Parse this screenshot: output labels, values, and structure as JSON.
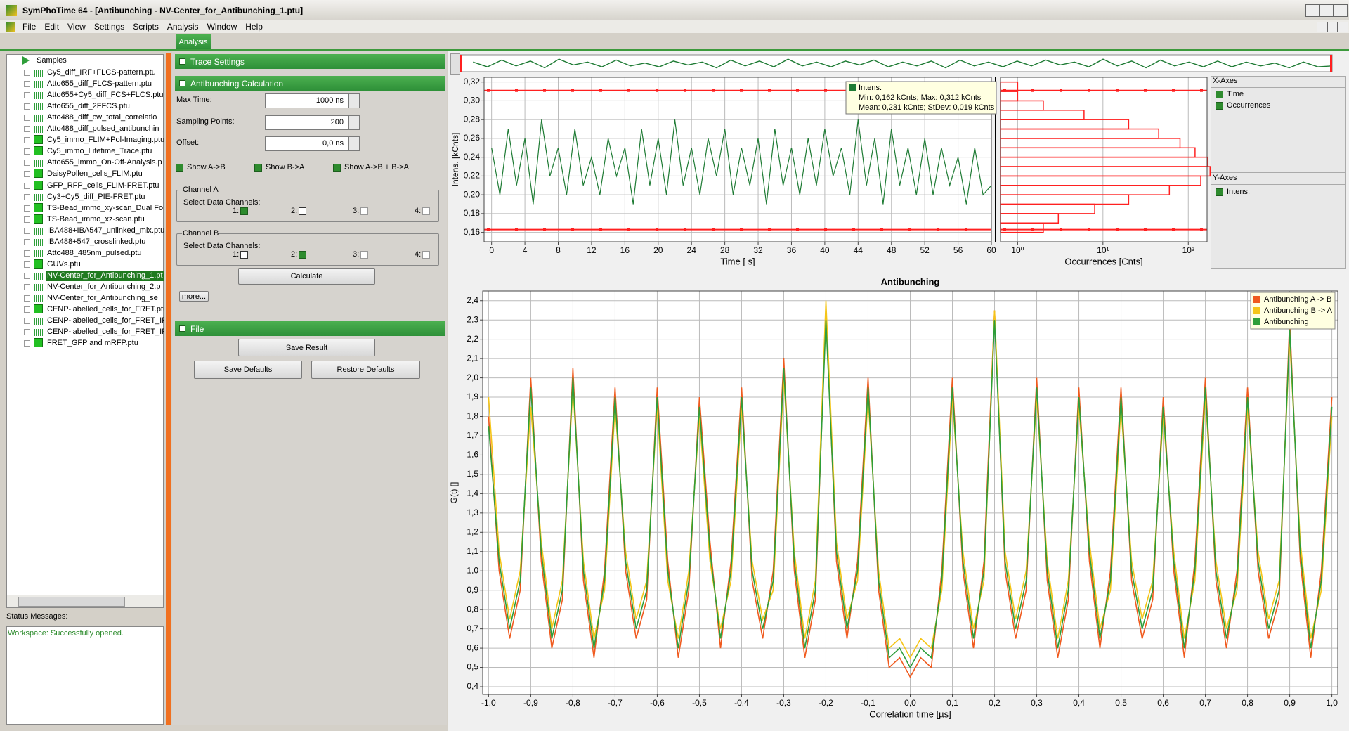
{
  "window": {
    "title": "SymPhoTime 64 - [Antibunching - NV-Center_for_Antibunching_1.ptu]"
  },
  "menu": [
    "File",
    "Edit",
    "View",
    "Settings",
    "Scripts",
    "Analysis",
    "Window",
    "Help"
  ],
  "tabs": [
    "Analysis"
  ],
  "tree": {
    "root": "Samples",
    "selected": 18,
    "items": [
      "Cy5_diff_IRF+FLCS-pattern.ptu",
      "Atto655_diff_FLCS-pattern.ptu",
      "Atto655+Cy5_diff_FCS+FLCS.ptu",
      "Atto655_diff_2FFCS.ptu",
      "Atto488_diff_cw_total_correlatio",
      "Atto488_diff_pulsed_antibunchin",
      "Cy5_immo_FLIM+Pol-Imaging.ptu",
      "Cy5_immo_Lifetime_Trace.ptu",
      "Atto655_immo_On-Off-Analysis.p",
      "DaisyPollen_cells_FLIM.ptu",
      "GFP_RFP_cells_FLIM-FRET.ptu",
      "Cy3+Cy5_diff_PIE-FRET.ptu",
      "TS-Bead_immo_xy-scan_Dual Fo",
      "TS-Bead_immo_xz-scan.ptu",
      "IBA488+IBA547_unlinked_mix.ptu",
      "IBA488+547_crosslinked.ptu",
      "Atto488_485nm_pulsed.ptu",
      "GUVs.ptu",
      "NV-Center_for_Antibunching_1.pt",
      "NV-Center_for_Antibunching_2.p",
      "NV-Center_for_Antibunching_se",
      "CENP-labelled_cells_for_FRET.ptu",
      "CENP-labelled_cells_for_FRET_IR",
      "CENP-labelled_cells_for_FRET_IR",
      "FRET_GFP and mRFP.ptu"
    ]
  },
  "status": {
    "label": "Status Messages:",
    "message": "Workspace: Successfully opened."
  },
  "panel": {
    "trace_settings": "Trace Settings",
    "antibunching_calculation": "Antibunching Calculation",
    "fields": [
      {
        "label": "Max Time:",
        "value": "1000 ns"
      },
      {
        "label": "Sampling Points:",
        "value": "200"
      },
      {
        "label": "Offset:",
        "value": "0,0 ns"
      }
    ],
    "checks": [
      "Show A->B",
      "Show B->A",
      "Show A->B + B->A"
    ],
    "channel_a": {
      "title": "Channel A",
      "label": "Select Data Channels:",
      "channels": [
        "1:",
        "2:",
        "3:",
        "4:"
      ],
      "checked": [
        true,
        false,
        false,
        false
      ]
    },
    "channel_b": {
      "title": "Channel B",
      "label": "Select Data Channels:",
      "channels": [
        "1:",
        "2:",
        "3:",
        "4:"
      ],
      "checked": [
        false,
        true,
        false,
        false
      ]
    },
    "calculate": "Calculate",
    "more": "more...",
    "file": "File",
    "save_result": "Save Result",
    "save_defaults": "Save Defaults",
    "restore_defaults": "Restore Defaults"
  },
  "axes_panel": {
    "x_title": "X-Axes",
    "x_items": [
      "Time",
      "Occurrences"
    ],
    "y_title": "Y-Axes",
    "y_items": [
      "Intens."
    ]
  },
  "tooltip": {
    "title": "Intens.",
    "lines": [
      "Min: 0,162 kCnts; Max: 0,312 kCnts",
      "Mean: 0,231 kCnts; StDev: 0,019 kCnts"
    ]
  },
  "chart_data": [
    {
      "type": "line",
      "xlabel": "Time [ s]",
      "ylabel": "Intens. [kCnts]",
      "x": [
        0,
        1,
        2,
        3,
        4,
        5,
        6,
        7,
        8,
        9,
        10,
        11,
        12,
        13,
        14,
        15,
        16,
        17,
        18,
        19,
        20,
        21,
        22,
        23,
        24,
        25,
        26,
        27,
        28,
        29,
        30,
        31,
        32,
        33,
        34,
        35,
        36,
        37,
        38,
        39,
        40,
        41,
        42,
        43,
        44,
        45,
        46,
        47,
        48,
        49,
        50,
        51,
        52,
        53,
        54,
        55,
        56,
        57,
        58,
        59,
        60
      ],
      "values": [
        0.25,
        0.2,
        0.27,
        0.21,
        0.26,
        0.19,
        0.28,
        0.22,
        0.25,
        0.2,
        0.27,
        0.21,
        0.24,
        0.2,
        0.26,
        0.22,
        0.25,
        0.19,
        0.27,
        0.21,
        0.26,
        0.2,
        0.28,
        0.21,
        0.25,
        0.2,
        0.26,
        0.22,
        0.27,
        0.2,
        0.25,
        0.21,
        0.26,
        0.19,
        0.27,
        0.21,
        0.25,
        0.2,
        0.26,
        0.21,
        0.27,
        0.22,
        0.25,
        0.2,
        0.28,
        0.21,
        0.26,
        0.19,
        0.27,
        0.21,
        0.25,
        0.2,
        0.26,
        0.2,
        0.25,
        0.21,
        0.24,
        0.19,
        0.25,
        0.2,
        0.21
      ],
      "color": "#1e7b34",
      "xlim": [
        -0.9,
        60
      ],
      "ylim": [
        0.15,
        0.325
      ],
      "xticks": [
        0,
        4,
        8,
        12,
        16,
        20,
        24,
        28,
        32,
        36,
        40,
        44,
        48,
        52,
        56,
        60
      ],
      "yticks": [
        {
          "value": 0.16,
          "label": "0,16"
        },
        {
          "value": 0.18,
          "label": "0,18"
        },
        {
          "value": 0.2,
          "label": "0,20"
        },
        {
          "value": 0.22,
          "label": "0,22"
        },
        {
          "value": 0.24,
          "label": "0,24"
        },
        {
          "value": 0.26,
          "label": "0,26"
        },
        {
          "value": 0.28,
          "label": "0,28"
        },
        {
          "value": 0.3,
          "label": "0,30"
        },
        {
          "value": 0.32,
          "label": "0,32"
        }
      ],
      "grid": true,
      "reference_lines": [
        0.311,
        0.163
      ],
      "reference_color": "#ff2020"
    },
    {
      "type": "histogram",
      "orientation": "horizontal",
      "xlabel": "Occurrences [Cnts]",
      "bins": [
        0.16,
        0.17,
        0.18,
        0.19,
        0.2,
        0.21,
        0.22,
        0.23,
        0.24,
        0.25,
        0.26,
        0.27,
        0.28,
        0.29,
        0.3,
        0.31,
        0.32
      ],
      "values": [
        2,
        3,
        8,
        20,
        60,
        140,
        180,
        170,
        120,
        80,
        45,
        20,
        6,
        2,
        1,
        1
      ],
      "color": "#ff2020",
      "xscale": "log",
      "xlim": [
        0.63,
        166
      ],
      "ylim": [
        0.15,
        0.325
      ],
      "xticks": [
        {
          "value": 1,
          "label": "10⁰"
        },
        {
          "value": 10,
          "label": "10¹"
        },
        {
          "value": 100,
          "label": "10²"
        }
      ],
      "grid": true,
      "reference_lines": [
        0.311,
        0.163
      ],
      "reference_color": "#ff2020"
    },
    {
      "type": "line",
      "title": "Antibunching",
      "xlabel": "Correlation time [µs]",
      "ylabel": "G(t) []",
      "x": [
        -1,
        -0.975,
        -0.95,
        -0.925,
        -0.9,
        -0.875,
        -0.85,
        -0.825,
        -0.8,
        -0.775,
        -0.75,
        -0.725,
        -0.7,
        -0.675,
        -0.65,
        -0.625,
        -0.6,
        -0.575,
        -0.55,
        -0.525,
        -0.5,
        -0.475,
        -0.45,
        -0.425,
        -0.4,
        -0.375,
        -0.35,
        -0.325,
        -0.3,
        -0.275,
        -0.25,
        -0.225,
        -0.2,
        -0.175,
        -0.15,
        -0.125,
        -0.1,
        -0.075,
        -0.05,
        -0.025,
        0,
        0.025,
        0.05,
        0.075,
        0.1,
        0.125,
        0.15,
        0.175,
        0.2,
        0.225,
        0.25,
        0.275,
        0.3,
        0.325,
        0.35,
        0.375,
        0.4,
        0.425,
        0.45,
        0.475,
        0.5,
        0.525,
        0.55,
        0.575,
        0.6,
        0.625,
        0.65,
        0.675,
        0.7,
        0.725,
        0.75,
        0.775,
        0.8,
        0.825,
        0.85,
        0.875,
        0.9,
        0.925,
        0.95,
        0.975,
        1
      ],
      "series": [
        {
          "name": "Antibunching A -> B",
          "color": "#f05a1e",
          "values": [
            1.8,
            1.0,
            0.65,
            0.9,
            2.0,
            1.05,
            0.6,
            0.85,
            2.05,
            0.95,
            0.55,
            1.0,
            1.95,
            1.0,
            0.65,
            0.85,
            1.95,
            1.05,
            0.55,
            0.9,
            1.9,
            1.15,
            0.6,
            1.05,
            1.95,
            0.95,
            0.65,
            1.0,
            2.1,
            1.0,
            0.55,
            0.85,
            2.35,
            1.05,
            0.65,
            1.05,
            2.0,
            0.9,
            0.5,
            0.55,
            0.45,
            0.55,
            0.5,
            1.0,
            2.0,
            1.0,
            0.6,
            1.05,
            2.35,
            1.0,
            0.65,
            0.9,
            2.0,
            0.95,
            0.55,
            0.85,
            1.95,
            1.05,
            0.6,
            1.0,
            1.95,
            0.95,
            0.65,
            0.85,
            1.9,
            1.0,
            0.55,
            1.05,
            2.0,
            0.95,
            0.6,
            1.0,
            1.95,
            1.0,
            0.65,
            0.85,
            2.3,
            1.05,
            0.55,
            1.0,
            1.9
          ]
        },
        {
          "name": "Antibunching B -> A",
          "color": "#f5c518",
          "values": [
            1.9,
            1.1,
            0.75,
            1.0,
            1.85,
            1.15,
            0.7,
            0.95,
            1.95,
            1.05,
            0.65,
            0.9,
            1.85,
            1.1,
            0.75,
            0.95,
            1.85,
            0.95,
            0.65,
            1.0,
            1.8,
            1.05,
            0.7,
            0.95,
            1.85,
            1.05,
            0.75,
            0.9,
            2.0,
            1.1,
            0.65,
            0.95,
            2.4,
            1.15,
            0.75,
            0.95,
            1.9,
            1.0,
            0.6,
            0.65,
            0.55,
            0.65,
            0.6,
            0.9,
            1.9,
            1.1,
            0.7,
            0.95,
            2.35,
            1.1,
            0.75,
            1.0,
            1.9,
            1.05,
            0.65,
            0.95,
            1.85,
            1.15,
            0.7,
            0.9,
            1.85,
            1.05,
            0.75,
            0.95,
            1.8,
            1.1,
            0.65,
            0.95,
            1.9,
            1.05,
            0.7,
            0.9,
            1.85,
            1.1,
            0.75,
            0.95,
            2.2,
            1.15,
            0.65,
            0.9,
            1.8
          ]
        },
        {
          "name": "Antibunching",
          "color": "#2e9e3a",
          "values": [
            1.75,
            1.05,
            0.7,
            0.95,
            1.95,
            1.1,
            0.65,
            0.9,
            2.0,
            1.0,
            0.6,
            0.95,
            1.9,
            1.05,
            0.7,
            0.9,
            1.9,
            1.0,
            0.6,
            0.95,
            1.85,
            1.1,
            0.65,
            1.0,
            1.9,
            1.0,
            0.7,
            0.95,
            2.05,
            1.05,
            0.6,
            0.9,
            2.3,
            1.1,
            0.7,
            1.0,
            1.95,
            0.95,
            0.55,
            0.6,
            0.5,
            0.6,
            0.55,
            0.95,
            1.95,
            1.05,
            0.65,
            1.0,
            2.3,
            1.05,
            0.7,
            0.95,
            1.95,
            1.0,
            0.6,
            0.9,
            1.9,
            1.1,
            0.65,
            0.95,
            1.9,
            1.0,
            0.7,
            0.9,
            1.85,
            1.05,
            0.6,
            1.0,
            1.95,
            1.0,
            0.65,
            0.95,
            1.9,
            1.05,
            0.7,
            0.9,
            2.25,
            1.1,
            0.6,
            0.95,
            1.85
          ]
        }
      ],
      "xlim": [
        -1.014,
        1.014
      ],
      "ylim": [
        0.36,
        2.45
      ],
      "xticks": [
        {
          "value": -1,
          "label": "-1,0"
        },
        {
          "value": -0.9,
          "label": "-0,9"
        },
        {
          "value": -0.8,
          "label": "-0,8"
        },
        {
          "value": -0.7,
          "label": "-0,7"
        },
        {
          "value": -0.6,
          "label": "-0,6"
        },
        {
          "value": -0.5,
          "label": "-0,5"
        },
        {
          "value": -0.4,
          "label": "-0,4"
        },
        {
          "value": -0.3,
          "label": "-0,3"
        },
        {
          "value": -0.2,
          "label": "-0,2"
        },
        {
          "value": -0.1,
          "label": "-0,1"
        },
        {
          "value": 0,
          "label": "0,0"
        },
        {
          "value": 0.1,
          "label": "0,1"
        },
        {
          "value": 0.2,
          "label": "0,2"
        },
        {
          "value": 0.3,
          "label": "0,3"
        },
        {
          "value": 0.4,
          "label": "0,4"
        },
        {
          "value": 0.5,
          "label": "0,5"
        },
        {
          "value": 0.6,
          "label": "0,6"
        },
        {
          "value": 0.7,
          "label": "0,7"
        },
        {
          "value": 0.8,
          "label": "0,8"
        },
        {
          "value": 0.9,
          "label": "0,9"
        },
        {
          "value": 1,
          "label": "1,0"
        }
      ],
      "yticks": [
        {
          "value": 0.4,
          "label": "0,4"
        },
        {
          "value": 0.5,
          "label": "0,5"
        },
        {
          "value": 0.6,
          "label": "0,6"
        },
        {
          "value": 0.7,
          "label": "0,7"
        },
        {
          "value": 0.8,
          "label": "0,8"
        },
        {
          "value": 0.9,
          "label": "0,9"
        },
        {
          "value": 1,
          "label": "1,0"
        },
        {
          "value": 1.1,
          "label": "1,1"
        },
        {
          "value": 1.2,
          "label": "1,2"
        },
        {
          "value": 1.3,
          "label": "1,3"
        },
        {
          "value": 1.4,
          "label": "1,4"
        },
        {
          "value": 1.5,
          "label": "1,5"
        },
        {
          "value": 1.6,
          "label": "1,6"
        },
        {
          "value": 1.7,
          "label": "1,7"
        },
        {
          "value": 1.8,
          "label": "1,8"
        },
        {
          "value": 1.9,
          "label": "1,9"
        },
        {
          "value": 2,
          "label": "2,0"
        },
        {
          "value": 2.1,
          "label": "2,1"
        },
        {
          "value": 2.2,
          "label": "2,2"
        },
        {
          "value": 2.3,
          "label": "2,3"
        },
        {
          "value": 2.4,
          "label": "2,4"
        }
      ],
      "grid": true,
      "legend": "upper right"
    }
  ]
}
